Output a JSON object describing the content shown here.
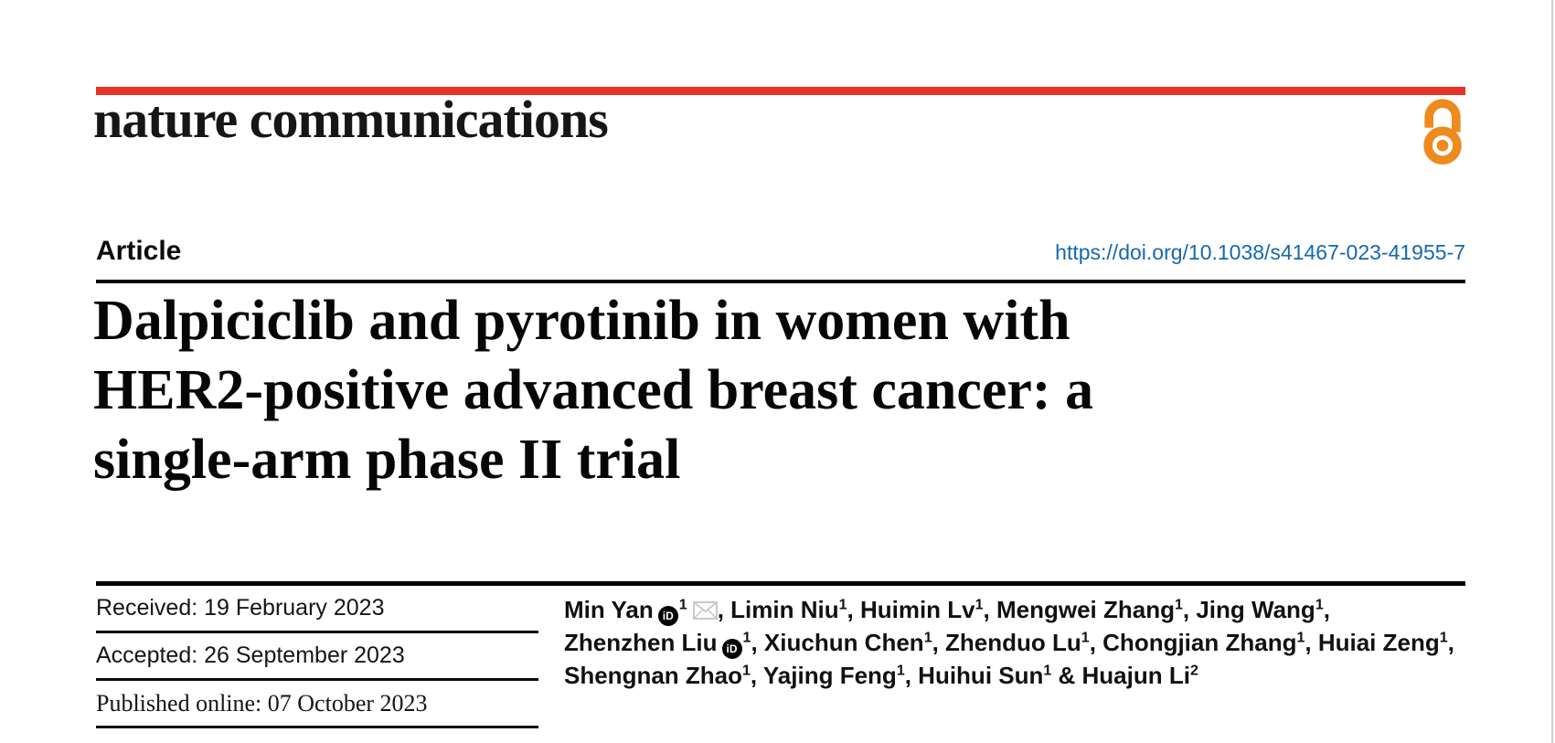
{
  "journal": {
    "name": "nature communications"
  },
  "article": {
    "type": "Article",
    "doi": "https://doi.org/10.1038/s41467-023-41955-7",
    "title_lines": [
      "Dalpiciclib and pyrotinib in women with",
      "HER2-positive advanced breast cancer: a",
      "single-arm phase II trial"
    ]
  },
  "history": [
    {
      "label": "Received: 19 February 2023"
    },
    {
      "label": "Accepted: 26 September 2023"
    },
    {
      "label": "Published online: 07 October 2023"
    }
  ],
  "authors": {
    "lines": [
      [
        {
          "name": "Min Yan",
          "orcid": true,
          "sup": "1",
          "email": true,
          "trail": ", "
        },
        {
          "name": "Limin Niu",
          "sup": "1",
          "trail": ", "
        },
        {
          "name": "Huimin Lv",
          "sup": "1",
          "trail": ", "
        },
        {
          "name": "Mengwei Zhang",
          "sup": "1",
          "trail": ", "
        },
        {
          "name": "Jing Wang",
          "sup": "1",
          "trail": ","
        }
      ],
      [
        {
          "name": "Zhenzhen Liu",
          "orcid": true,
          "sup": "1",
          "trail": ", "
        },
        {
          "name": "Xiuchun Chen",
          "sup": "1",
          "trail": ", "
        },
        {
          "name": "Zhenduo Lu",
          "sup": "1",
          "trail": ", "
        },
        {
          "name": "Chongjian Zhang",
          "sup": "1",
          "trail": ", "
        },
        {
          "name": "Huiai Zeng",
          "sup": "1",
          "trail": ","
        }
      ],
      [
        {
          "name": "Shengnan Zhao",
          "sup": "1",
          "trail": ", "
        },
        {
          "name": "Yajing Feng",
          "sup": "1",
          "trail": ", "
        },
        {
          "name": "Huihui Sun",
          "sup": "1",
          "trail": " & "
        },
        {
          "name": "Huajun Li",
          "sup": "2",
          "trail": ""
        }
      ]
    ]
  },
  "icons": {
    "open_access": "open-access-padlock",
    "orcid_text": "iD",
    "email": "envelope"
  },
  "colors": {
    "brand_red": "#e63227",
    "oa_orange": "#ee8b1e",
    "link_blue": "#1668ac",
    "text_black": "#141414",
    "edge_gray": "#cdcdcd"
  }
}
